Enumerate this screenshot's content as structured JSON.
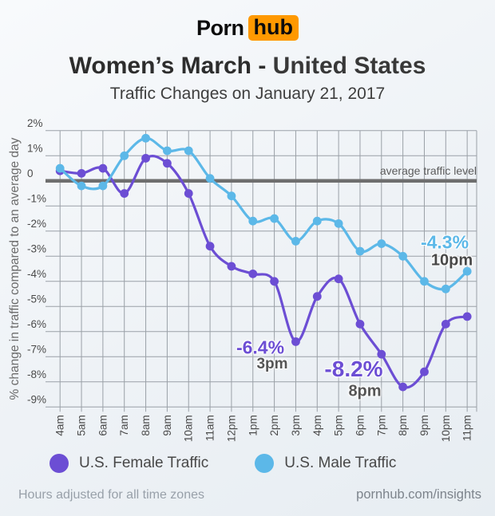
{
  "logo": {
    "part1": "Porn",
    "part2": "hub",
    "accent_color": "#ff9900"
  },
  "header": {
    "title_strong": "Women’s March -",
    "title_light": "United States",
    "subtitle": "Traffic Changes on January 21, 2017"
  },
  "chart_data": {
    "type": "line",
    "title": "Women’s March - United States",
    "subtitle": "Traffic Changes on January 21, 2017",
    "categories": [
      "4am",
      "5am",
      "6am",
      "7am",
      "8am",
      "9am",
      "10am",
      "11am",
      "12pm",
      "1pm",
      "2pm",
      "3pm",
      "4pm",
      "5pm",
      "6pm",
      "7pm",
      "8pm",
      "9pm",
      "10pm",
      "11pm"
    ],
    "series": [
      {
        "name": "U.S. Female Traffic",
        "color": "#6c4ed4",
        "values": [
          0.4,
          0.3,
          0.5,
          -0.5,
          0.9,
          0.7,
          -0.5,
          -2.6,
          -3.4,
          -3.7,
          -4.0,
          -6.4,
          -4.6,
          -3.9,
          -5.7,
          -6.9,
          -8.2,
          -7.6,
          -5.7,
          -5.4
        ]
      },
      {
        "name": "U.S. Male Traffic",
        "color": "#5cb8e8",
        "values": [
          0.5,
          -0.2,
          -0.2,
          1.0,
          1.7,
          1.2,
          1.2,
          0.1,
          -0.6,
          -1.6,
          -1.5,
          -2.4,
          -1.6,
          -1.7,
          -2.8,
          -2.5,
          -3.0,
          -4.0,
          -4.3,
          -3.6
        ]
      }
    ],
    "xlabel": "",
    "ylabel": "% change in traffic compared to an average day",
    "ylim": [
      -9,
      2
    ],
    "yticks": [
      {
        "label": "2%",
        "value": 2
      },
      {
        "label": "1%",
        "value": 1
      },
      {
        "label": "0",
        "value": 0
      },
      {
        "label": "-1%",
        "value": -1
      },
      {
        "label": "-2%",
        "value": -2
      },
      {
        "label": "-3%",
        "value": -3
      },
      {
        "label": "-4%",
        "value": -4
      },
      {
        "label": "-5%",
        "value": -5
      },
      {
        "label": "-6%",
        "value": -6
      },
      {
        "label": "-7%",
        "value": -7
      },
      {
        "label": "-8%",
        "value": -8
      },
      {
        "label": "-9%",
        "value": -9
      }
    ],
    "zero_line_label": "average traffic level",
    "grid": true,
    "legend_position": "bottom",
    "annotations": [
      {
        "series": "U.S. Female Traffic",
        "x": "3pm",
        "value": -6.4,
        "value_label": "-6.4%",
        "time_label": "3pm"
      },
      {
        "series": "U.S. Female Traffic",
        "x": "8pm",
        "value": -8.2,
        "value_label": "-8.2%",
        "time_label": "8pm"
      },
      {
        "series": "U.S. Male Traffic",
        "x": "10pm",
        "value": -4.3,
        "value_label": "-4.3%",
        "time_label": "10pm"
      }
    ]
  },
  "legend": {
    "items": [
      {
        "label": "U.S. Female Traffic",
        "color": "#6c4ed4"
      },
      {
        "label": "U.S. Male Traffic",
        "color": "#5cb8e8"
      }
    ]
  },
  "footer": {
    "left": "Hours adjusted for all time zones",
    "right": "pornhub.com/insights"
  }
}
